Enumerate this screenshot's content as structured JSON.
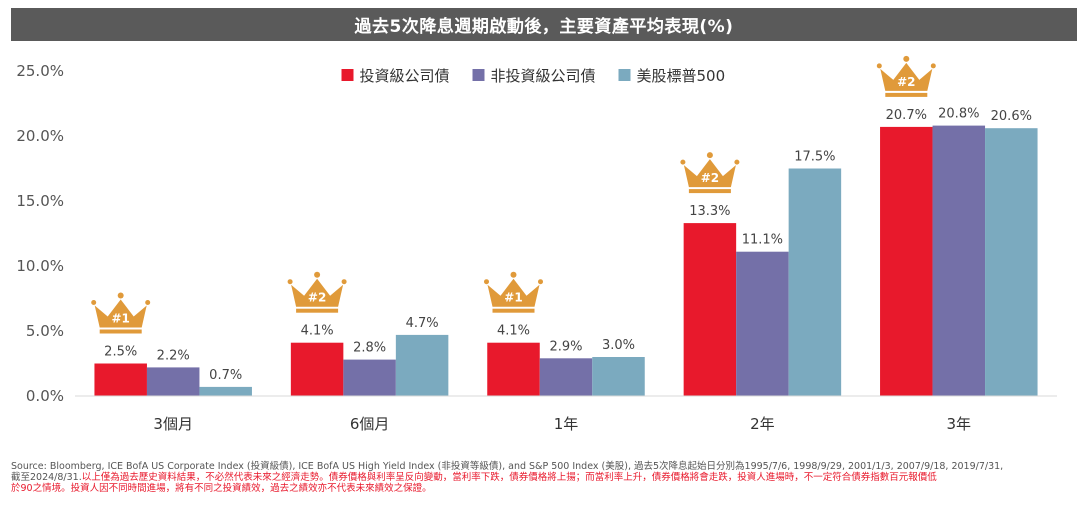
{
  "title": "過去5次降息週期啟動後，主要資產平均表現(%)",
  "chart_data": {
    "type": "bar",
    "categories": [
      "3個月",
      "6個月",
      "1年",
      "2年",
      "3年"
    ],
    "series": [
      {
        "name": "投資級公司債",
        "color": "#e8192c",
        "values": [
          2.5,
          4.1,
          4.1,
          13.3,
          20.7
        ]
      },
      {
        "name": "非投資級公司債",
        "color": "#7470a8",
        "values": [
          2.2,
          2.8,
          2.9,
          11.1,
          20.8
        ]
      },
      {
        "name": "美股標普500",
        "color": "#7baabf",
        "values": [
          0.7,
          4.7,
          3.0,
          17.5,
          20.6
        ]
      }
    ],
    "data_labels": [
      [
        "2.5%",
        "4.1%",
        "4.1%",
        "13.3%",
        "20.7%"
      ],
      [
        "2.2%",
        "2.8%",
        "2.9%",
        "11.1%",
        "20.8%"
      ],
      [
        "0.7%",
        "4.7%",
        "3.0%",
        "17.5%",
        "20.6%"
      ]
    ],
    "y_ticks": [
      "0.0%",
      "5.0%",
      "10.0%",
      "15.0%",
      "20.0%",
      "25.0%"
    ],
    "ylim": [
      0,
      25
    ],
    "legend_position": "top-center",
    "grid": false,
    "badges": [
      {
        "category": "3個月",
        "label": "#1"
      },
      {
        "category": "6個月",
        "label": "#2"
      },
      {
        "category": "1年",
        "label": "#1"
      },
      {
        "category": "2年",
        "label": "#2"
      },
      {
        "category": "3年",
        "label": "#2"
      }
    ],
    "badge_color": "#e09a3a"
  },
  "source": {
    "line1": "Source: Bloomberg, ICE BofA US Corporate Index (投資級債), ICE BofA US High Yield Index (非投資等級債), and S&P 500 Index (美股), 過去5次降息起始日分別為1995/7/6, 1998/9/29, 2001/1/3, 2007/9/18, 2019/7/31,",
    "line2_plain": "截至2024/8/31.",
    "line2_red": "以上僅為過去歷史資料結果，不必然代表未來之經濟走勢。債券價格與利率呈反向變動，當利率下跌，債券價格將上揚；而當利率上升，債券價格將會走跌，投資人進場時，不一定符合債券指數百元報價低",
    "line3_red": "於90之情境。投資人因不同時間進場，將有不同之投資績效，過去之績效亦不代表未來績效之保證。"
  }
}
